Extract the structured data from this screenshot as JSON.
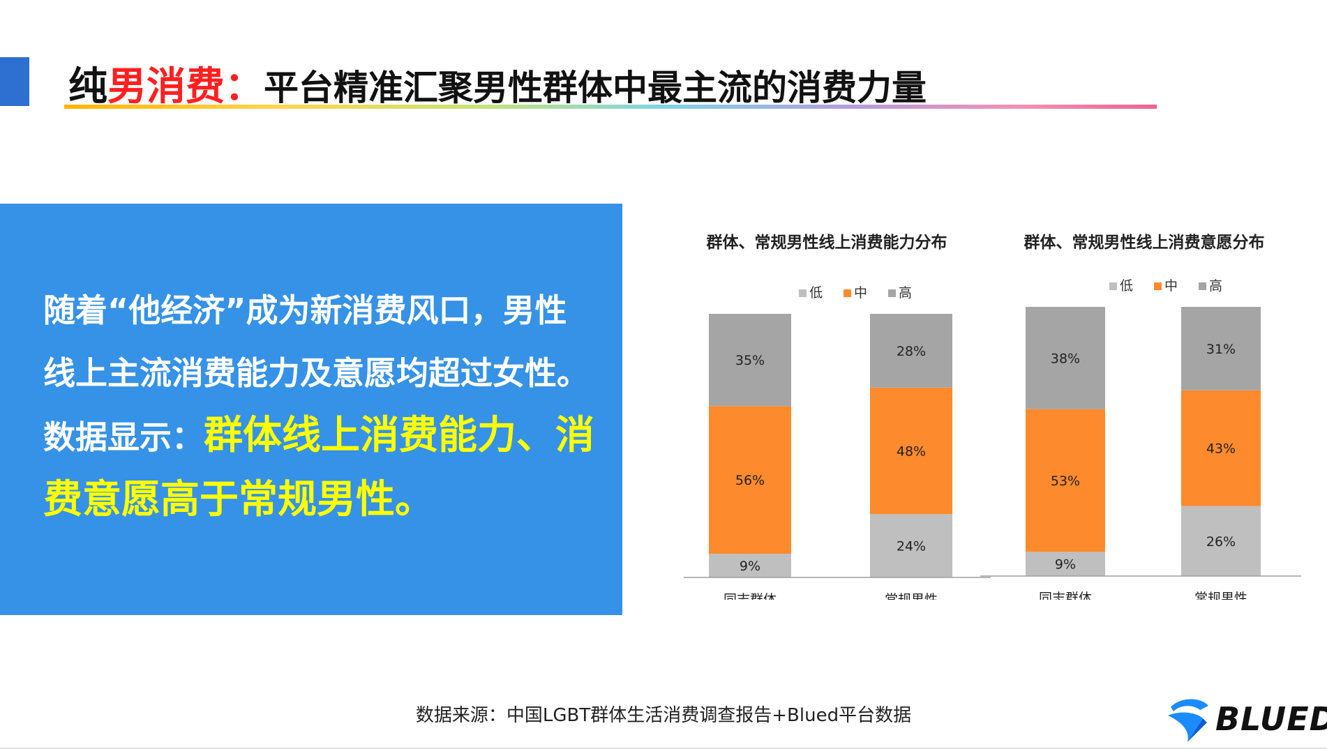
{
  "header": {
    "title_black": "纯",
    "title_red": "男消费：",
    "title_sub": "平台精准汇聚男性群体中最主流的消费力量"
  },
  "panel": {
    "line1": "随着“他经济”成为新消费风口，男性线上主流消费能力及意愿均超过女性。数据显示：",
    "highlight": "群体线上消费能力、消费意愿高于常规男性。"
  },
  "footer": {
    "source": "数据来源：中国LGBT群体生活消费调查报告+Blued平台数据",
    "logo_text": "BLUED",
    "logo_icon": "blued-wing-icon"
  },
  "colors": {
    "low": "#bfbfbf",
    "mid": "#fd8a2d",
    "high": "#a5a5a5",
    "panel": "#3592e6",
    "highlight": "#ffff00",
    "title_red": "#ff1f1f"
  },
  "chart_data": [
    {
      "type": "bar",
      "stacked": true,
      "title": "群体、常规男性线上消费能力分布",
      "categories": [
        "同志群体",
        "常规男性"
      ],
      "series": [
        {
          "name": "低",
          "values": [
            9,
            24
          ]
        },
        {
          "name": "中",
          "values": [
            56,
            48
          ]
        },
        {
          "name": "高",
          "values": [
            35,
            28
          ]
        }
      ],
      "labels": [
        [
          "9%",
          "24%"
        ],
        [
          "56%",
          "48%"
        ],
        [
          "35%",
          "28%"
        ]
      ],
      "ylim": [
        0,
        100
      ],
      "legend": "top-right",
      "grid": false
    },
    {
      "type": "bar",
      "stacked": true,
      "title": "群体、常规男性线上消费意愿分布",
      "categories": [
        "同志群体",
        "常规男性"
      ],
      "series": [
        {
          "name": "低",
          "values": [
            9,
            26
          ]
        },
        {
          "name": "中",
          "values": [
            53,
            43
          ]
        },
        {
          "name": "高",
          "values": [
            38,
            31
          ]
        }
      ],
      "labels": [
        [
          "9%",
          "26%"
        ],
        [
          "53%",
          "43%"
        ],
        [
          "38%",
          "31%"
        ]
      ],
      "ylim": [
        0,
        100
      ],
      "legend": "top-right",
      "grid": false
    }
  ]
}
